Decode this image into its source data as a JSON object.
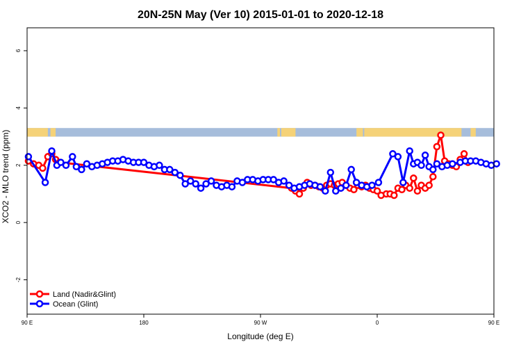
{
  "chart_data": {
    "type": "line",
    "title": "20N-25N May (Ver 10)   2015-01-01 to 2020-12-18",
    "xlabel": "Longitude (deg E)",
    "ylabel": "XCO2 - MLO trend (ppm)",
    "xlim": [
      90,
      450
    ],
    "ylim": [
      -3.2,
      6.8
    ],
    "x_ticks": [
      {
        "value": 90,
        "label": "90 E"
      },
      {
        "value": 180,
        "label": "180"
      },
      {
        "value": 270,
        "label": "90 W"
      },
      {
        "value": 360,
        "label": "0"
      },
      {
        "value": 450,
        "label": "90 E"
      },
      {
        "value": 540,
        "label": "180"
      }
    ],
    "y_ticks": [
      {
        "value": -2,
        "label": "-2"
      },
      {
        "value": 0,
        "label": "0"
      },
      {
        "value": 2,
        "label": "2"
      },
      {
        "value": 4,
        "label": "4"
      },
      {
        "value": 6,
        "label": "6"
      }
    ],
    "grid": false,
    "legend_position": "bottom-left",
    "map_strip": {
      "lat_range": [
        20,
        25
      ],
      "y_range": [
        3.0,
        3.3
      ],
      "ocean_color": "#a6bddb",
      "land_color": "#f5d278"
    },
    "series": [
      {
        "name": "Land (Nadir&Glint)",
        "color": "#ff0000",
        "x": [
          91,
          95,
          99,
          102,
          106,
          109,
          112,
          115,
          294,
          297,
          300,
          303,
          306,
          309,
          312,
          315,
          318,
          321,
          324,
          327,
          330,
          333,
          336,
          339,
          342,
          345,
          348,
          351,
          354,
          357,
          360,
          363,
          367,
          370,
          373,
          376,
          379,
          382,
          385,
          388,
          391,
          394,
          397,
          400,
          403,
          406,
          409,
          412,
          415,
          418,
          421,
          424,
          427,
          430
        ],
        "y": [
          2.15,
          2.05,
          2.0,
          1.9,
          2.3,
          2.4,
          2.2,
          2.1,
          1.2,
          1.1,
          1.0,
          1.2,
          1.4,
          1.3,
          1.3,
          1.25,
          1.2,
          1.3,
          1.35,
          1.3,
          1.35,
          1.4,
          1.3,
          1.2,
          1.15,
          1.3,
          1.25,
          1.3,
          1.2,
          1.15,
          1.1,
          0.95,
          1.0,
          1.0,
          0.95,
          1.2,
          1.15,
          1.3,
          1.2,
          1.55,
          1.1,
          1.3,
          1.2,
          1.3,
          1.6,
          2.65,
          3.05,
          2.15,
          2.05,
          2.0,
          1.95,
          2.2,
          2.4,
          2.1
        ]
      },
      {
        "name": "Ocean (Glint)",
        "color": "#0000ff",
        "x": [
          91,
          104,
          109,
          113,
          116,
          120,
          125,
          128,
          132,
          136,
          140,
          144,
          148,
          152,
          156,
          160,
          164,
          168,
          172,
          176,
          180,
          184,
          188,
          192,
          196,
          200,
          204,
          208,
          212,
          216,
          220,
          224,
          228,
          232,
          236,
          240,
          244,
          248,
          252,
          256,
          260,
          264,
          268,
          272,
          276,
          280,
          284,
          288,
          292,
          296,
          300,
          304,
          308,
          312,
          316,
          320,
          324,
          328,
          332,
          336,
          340,
          344,
          348,
          352,
          356,
          361,
          372,
          376,
          380,
          385,
          388,
          391,
          394,
          397,
          400,
          403,
          406,
          410,
          414,
          418,
          424,
          428,
          432,
          436,
          440,
          444,
          448,
          452
        ],
        "y": [
          2.3,
          1.4,
          2.5,
          2.0,
          2.1,
          2.0,
          2.3,
          1.95,
          1.85,
          2.05,
          1.95,
          2.0,
          2.05,
          2.1,
          2.15,
          2.15,
          2.2,
          2.15,
          2.1,
          2.1,
          2.1,
          2.0,
          1.95,
          2.0,
          1.85,
          1.85,
          1.75,
          1.65,
          1.35,
          1.45,
          1.35,
          1.2,
          1.35,
          1.45,
          1.3,
          1.25,
          1.3,
          1.25,
          1.45,
          1.4,
          1.5,
          1.5,
          1.45,
          1.5,
          1.5,
          1.5,
          1.4,
          1.45,
          1.3,
          1.2,
          1.25,
          1.3,
          1.35,
          1.3,
          1.25,
          1.1,
          1.75,
          1.1,
          1.2,
          1.3,
          1.85,
          1.4,
          1.3,
          1.25,
          1.3,
          1.4,
          2.4,
          2.3,
          1.4,
          2.5,
          2.05,
          2.1,
          2.0,
          2.35,
          1.95,
          1.85,
          2.05,
          1.95,
          2.0,
          2.05,
          2.1,
          2.15,
          2.15,
          2.15,
          2.1,
          2.05,
          2.0,
          2.05
        ]
      }
    ]
  }
}
